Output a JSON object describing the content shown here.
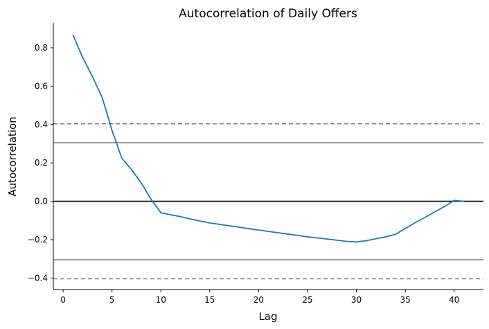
{
  "chart_data": {
    "type": "line",
    "title": "Autocorrelation of Daily Offers",
    "xlabel": "Lag",
    "ylabel": "Autocorrelation",
    "xlim": [
      -1,
      43
    ],
    "ylim": [
      -0.46,
      0.93
    ],
    "xticks": [
      0,
      5,
      10,
      15,
      20,
      25,
      30,
      35,
      40
    ],
    "yticks": [
      -0.4,
      -0.2,
      0.0,
      0.2,
      0.4,
      0.6,
      0.8
    ],
    "xtick_labels": [
      "0",
      "5",
      "10",
      "15",
      "20",
      "25",
      "30",
      "35",
      "40"
    ],
    "ytick_labels": [
      "−0.4",
      "−0.2",
      "0.0",
      "0.2",
      "0.4",
      "0.6",
      "0.8"
    ],
    "grid": false,
    "reference_lines": [
      {
        "y": 0.404,
        "style": "dashed",
        "color": "#808080"
      },
      {
        "y": 0.305,
        "style": "solid",
        "color": "#808080"
      },
      {
        "y": 0.0,
        "style": "solid",
        "color": "#000000"
      },
      {
        "y": -0.305,
        "style": "solid",
        "color": "#808080"
      },
      {
        "y": -0.404,
        "style": "dashed",
        "color": "#808080"
      }
    ],
    "series": [
      {
        "color": "#1f77b4",
        "x": [
          1,
          2,
          3,
          4,
          5,
          6,
          7,
          8,
          9,
          10,
          11,
          12,
          13,
          14,
          15,
          16,
          17,
          18,
          19,
          20,
          21,
          22,
          23,
          24,
          25,
          26,
          27,
          28,
          29,
          30,
          31,
          32,
          33,
          34,
          35,
          36,
          37,
          38,
          39,
          40,
          41
        ],
        "y": [
          0.868,
          0.75,
          0.65,
          0.54,
          0.37,
          0.225,
          0.165,
          0.095,
          0.01,
          -0.06,
          -0.07,
          -0.08,
          -0.092,
          -0.103,
          -0.113,
          -0.12,
          -0.128,
          -0.135,
          -0.143,
          -0.15,
          -0.157,
          -0.164,
          -0.171,
          -0.178,
          -0.185,
          -0.191,
          -0.197,
          -0.203,
          -0.209,
          -0.212,
          -0.206,
          -0.195,
          -0.185,
          -0.172,
          -0.142,
          -0.112,
          -0.085,
          -0.056,
          -0.028,
          0.005,
          0.0
        ]
      }
    ]
  }
}
